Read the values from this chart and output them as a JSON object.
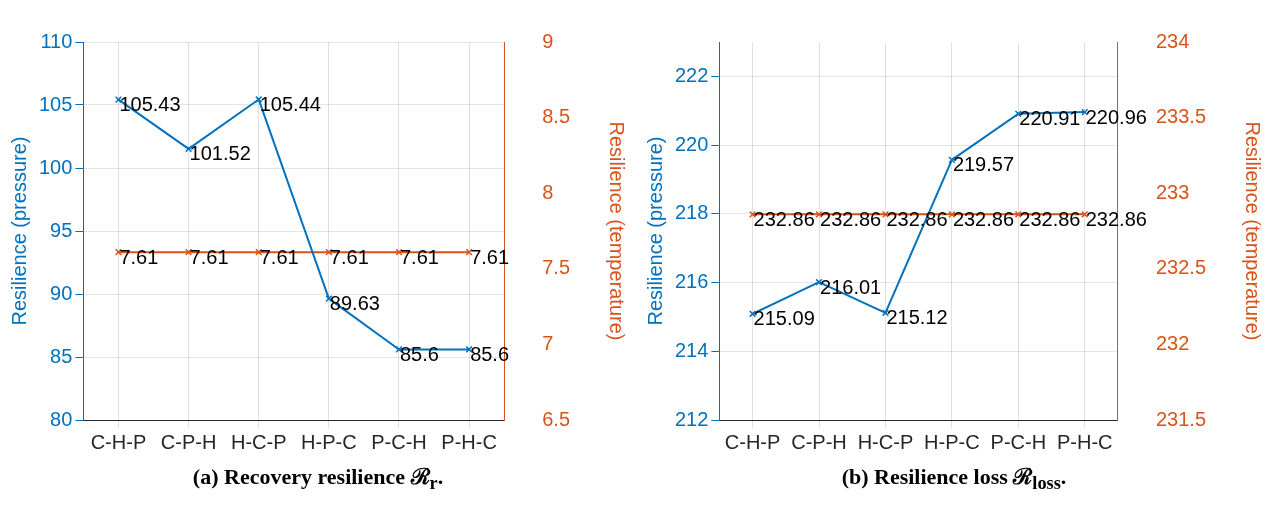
{
  "chart_data": [
    {
      "type": "line",
      "title": "(a) Recovery resilience ℛ$_{r}$.",
      "categories": [
        "C-H-P",
        "C-P-H",
        "H-C-P",
        "H-P-C",
        "P-C-H",
        "P-H-C"
      ],
      "ylabel": "Resilience (pressure)",
      "y2label": "Resilience (temperature)",
      "ylim": [
        80,
        110
      ],
      "yticks": [
        80,
        85,
        90,
        95,
        100,
        105,
        110
      ],
      "y2lim": [
        6.5,
        9
      ],
      "y2ticks": [
        6.5,
        7,
        7.5,
        8,
        8.5,
        9
      ],
      "grid": true,
      "legend": false,
      "marker": "cross",
      "line_style": "solid",
      "data_labels": true,
      "series": [
        {
          "color": "#0072bd",
          "values": [
            105.43,
            101.52,
            105.44,
            89.63,
            85.6,
            85.6
          ]
        },
        {
          "color": "#d95319",
          "axis": "y2",
          "values": [
            7.61,
            7.61,
            7.61,
            7.61,
            7.61,
            7.61
          ]
        }
      ]
    },
    {
      "type": "line",
      "title": "(b) Resilience loss ℛ$_{loss}$.",
      "categories": [
        "C-H-P",
        "C-P-H",
        "H-C-P",
        "H-P-C",
        "P-C-H",
        "P-H-C"
      ],
      "ylabel": "Resilience (pressure)",
      "y2label": "Resilience (temperature)",
      "ylim": [
        212,
        223
      ],
      "yticks": [
        212,
        214,
        216,
        218,
        220,
        222
      ],
      "y2lim": [
        231.5,
        234
      ],
      "y2ticks": [
        231.5,
        232,
        232.5,
        233,
        233.5,
        234
      ],
      "grid": true,
      "legend": false,
      "marker": "cross",
      "line_style": "solid",
      "data_labels": true,
      "series": [
        {
          "color": "#0072bd",
          "values": [
            215.09,
            216.01,
            215.12,
            219.57,
            220.91,
            220.96
          ]
        },
        {
          "color": "#d95319",
          "axis": "y2",
          "values": [
            232.86,
            232.86,
            232.86,
            232.86,
            232.86,
            232.86
          ]
        }
      ]
    }
  ]
}
